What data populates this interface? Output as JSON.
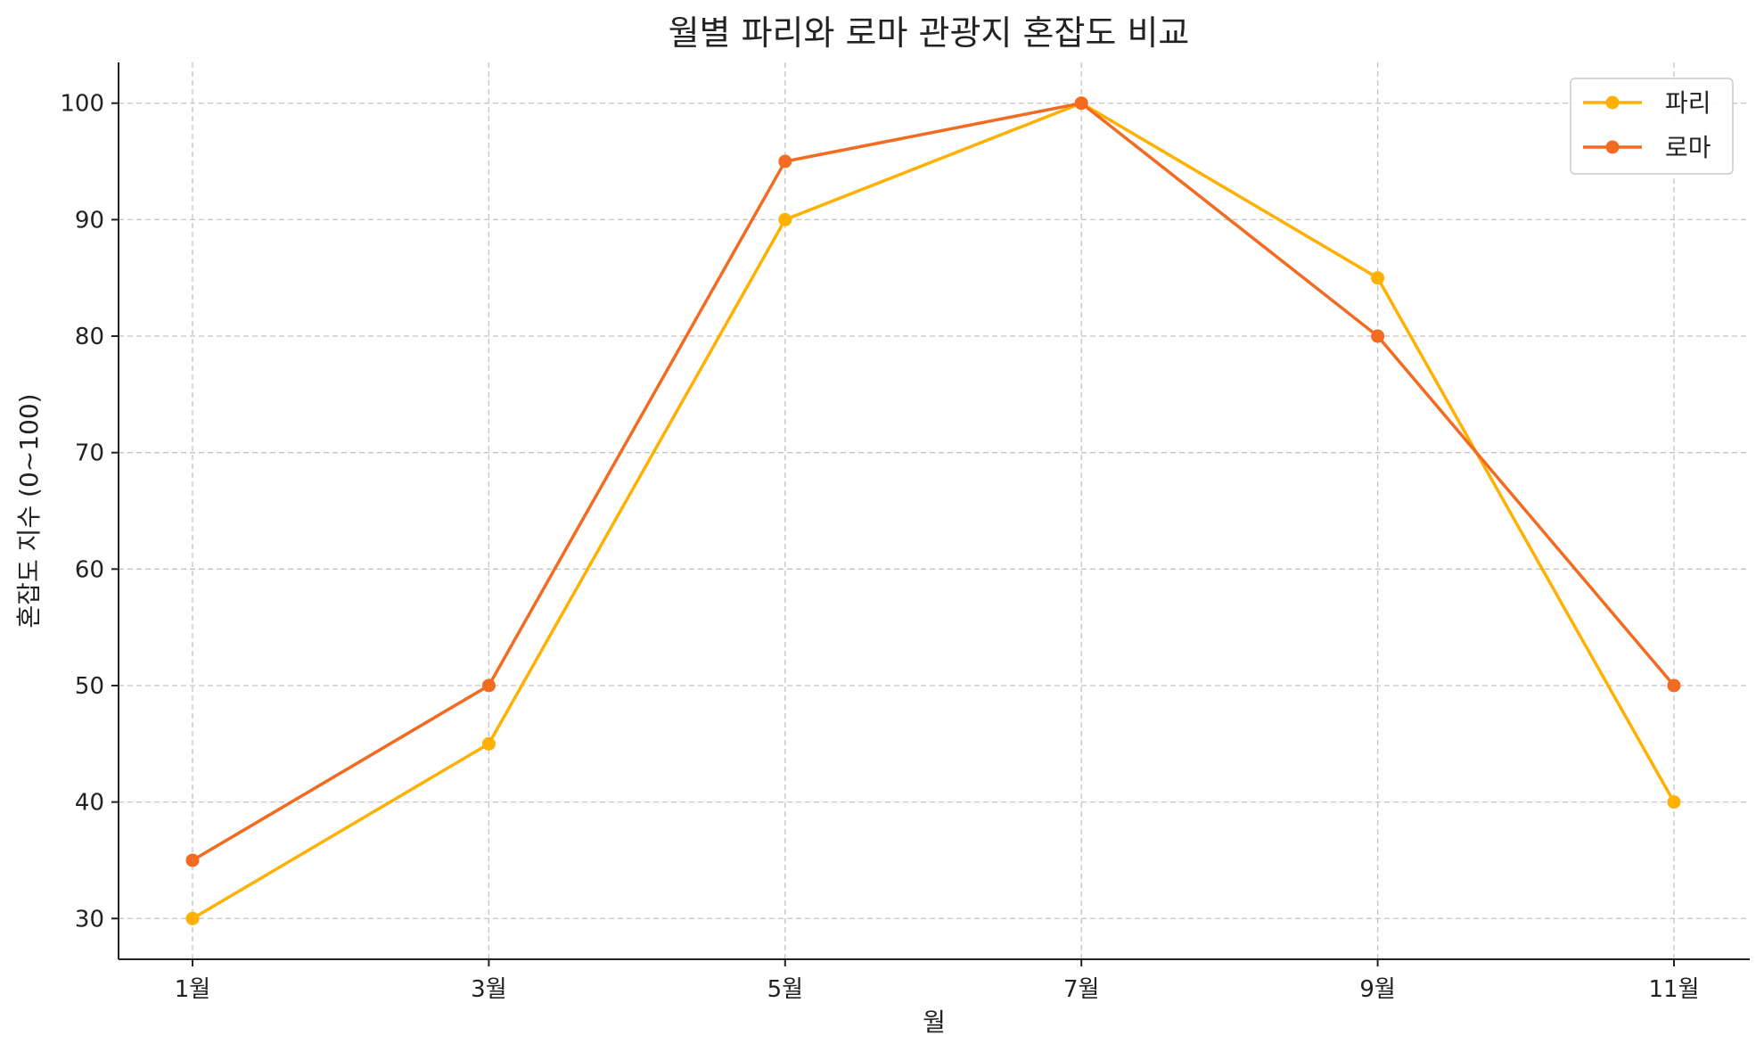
{
  "chart_data": {
    "type": "line",
    "title": "월별 파리와 로마 관광지 혼잡도 비교",
    "xlabel": "월",
    "ylabel": "혼잡도 지수 (0~100)",
    "categories": [
      "1월",
      "3월",
      "5월",
      "7월",
      "9월",
      "11월"
    ],
    "yticks": [
      30,
      40,
      50,
      60,
      70,
      80,
      90,
      100
    ],
    "ylim": [
      26.5,
      103.5
    ],
    "grid": true,
    "legend_position": "top-right",
    "series": [
      {
        "name": "파리",
        "color": "#FFB000",
        "values": [
          30,
          45,
          90,
          100,
          85,
          40
        ]
      },
      {
        "name": "로마",
        "color": "#F26B21",
        "values": [
          35,
          50,
          95,
          100,
          80,
          50
        ]
      }
    ]
  }
}
